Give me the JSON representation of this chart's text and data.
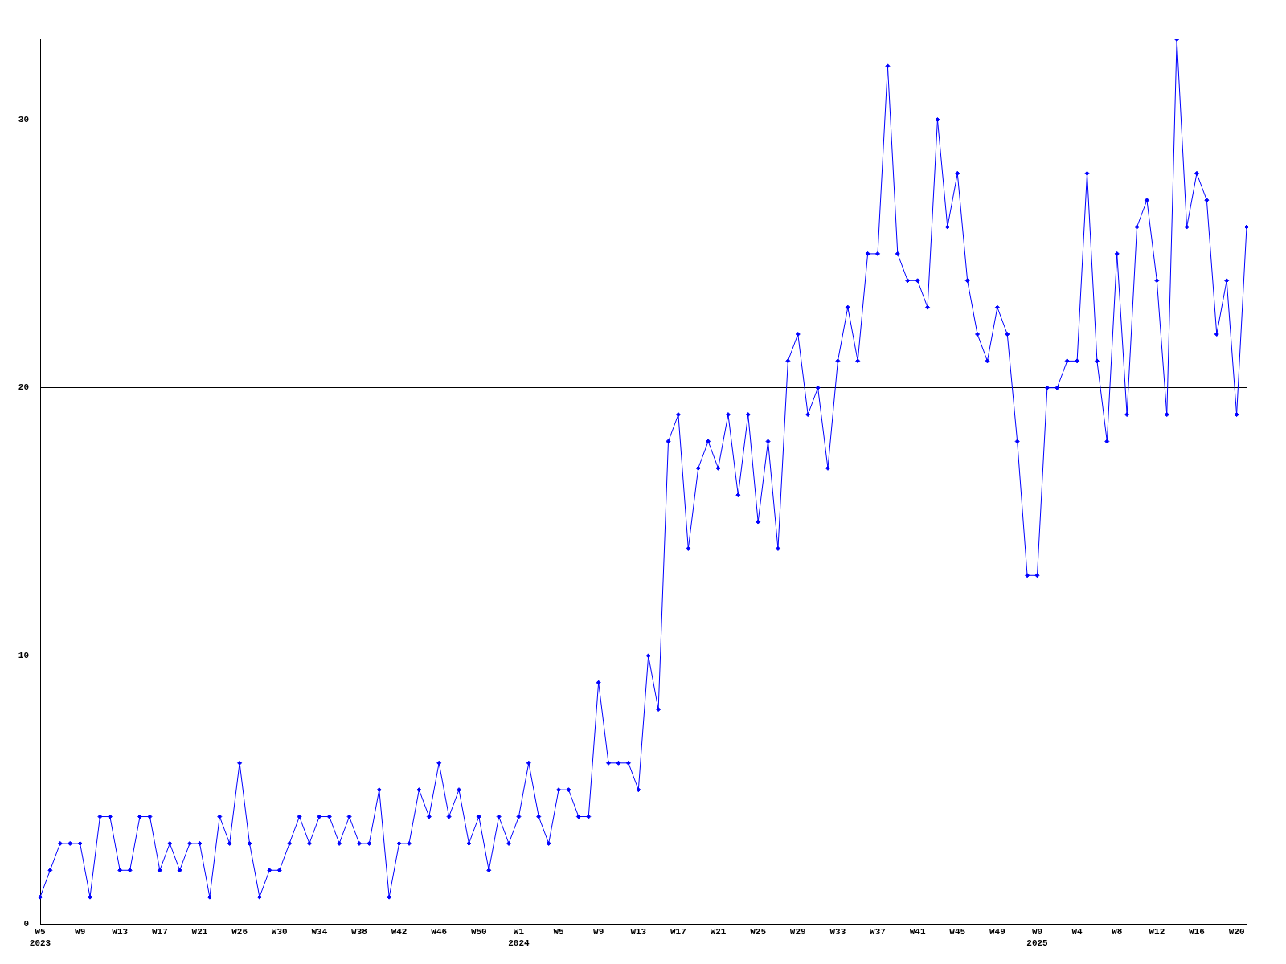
{
  "chart_data": {
    "type": "line",
    "categories": [
      "W5\n2023",
      null,
      null,
      null,
      "W9",
      null,
      null,
      null,
      "W13",
      null,
      null,
      null,
      "W17",
      null,
      null,
      null,
      "W21",
      null,
      null,
      null,
      "W26",
      null,
      null,
      null,
      "W30",
      null,
      null,
      null,
      "W34",
      null,
      null,
      null,
      "W38",
      null,
      null,
      null,
      "W42",
      null,
      null,
      null,
      "W46",
      null,
      null,
      null,
      "W50",
      null,
      null,
      null,
      "W1\n2024",
      null,
      null,
      null,
      "W5",
      null,
      null,
      null,
      "W9",
      null,
      null,
      null,
      "W13",
      null,
      null,
      null,
      "W17",
      null,
      null,
      null,
      "W21",
      null,
      null,
      null,
      "W25",
      null,
      null,
      null,
      "W29",
      null,
      null,
      null,
      "W33",
      null,
      null,
      null,
      "W37",
      null,
      null,
      null,
      "W41",
      null,
      null,
      null,
      "W45",
      null,
      null,
      null,
      "W49",
      null,
      null,
      null,
      "W0\n2025",
      null,
      null,
      null,
      "W4",
      null,
      null,
      null,
      "W8",
      null,
      null,
      null,
      "W12",
      null,
      null,
      null,
      "W16",
      null,
      null,
      null,
      "W20",
      null
    ],
    "series": [
      {
        "color": "#0000ff",
        "values": [
          1,
          2,
          3,
          3,
          3,
          1,
          4,
          4,
          2,
          2,
          4,
          4,
          2,
          3,
          2,
          3,
          3,
          1,
          4,
          3,
          6,
          3,
          1,
          2,
          2,
          3,
          4,
          3,
          4,
          4,
          3,
          4,
          3,
          3,
          5,
          1,
          3,
          3,
          5,
          4,
          6,
          4,
          5,
          3,
          4,
          2,
          4,
          3,
          4,
          6,
          4,
          3,
          5,
          5,
          4,
          4,
          9,
          6,
          6,
          6,
          5,
          10,
          8,
          18,
          19,
          14,
          17,
          18,
          17,
          19,
          16,
          19,
          15,
          18,
          14,
          21,
          22,
          19,
          20,
          17,
          21,
          23,
          21,
          25,
          25,
          32,
          25,
          24,
          24,
          23,
          30,
          26,
          28,
          24,
          22,
          21,
          23,
          22,
          18,
          13,
          13,
          20,
          20,
          21,
          21,
          28,
          21,
          18,
          25,
          19,
          26,
          27,
          24,
          19,
          33,
          26,
          28,
          27,
          22,
          24,
          19,
          26
        ]
      }
    ],
    "ylim": [
      0,
      33
    ],
    "yticks": [
      0,
      10,
      20,
      30
    ],
    "grid": "y",
    "legend": false,
    "marker": "diamond",
    "line_style": "solid"
  }
}
